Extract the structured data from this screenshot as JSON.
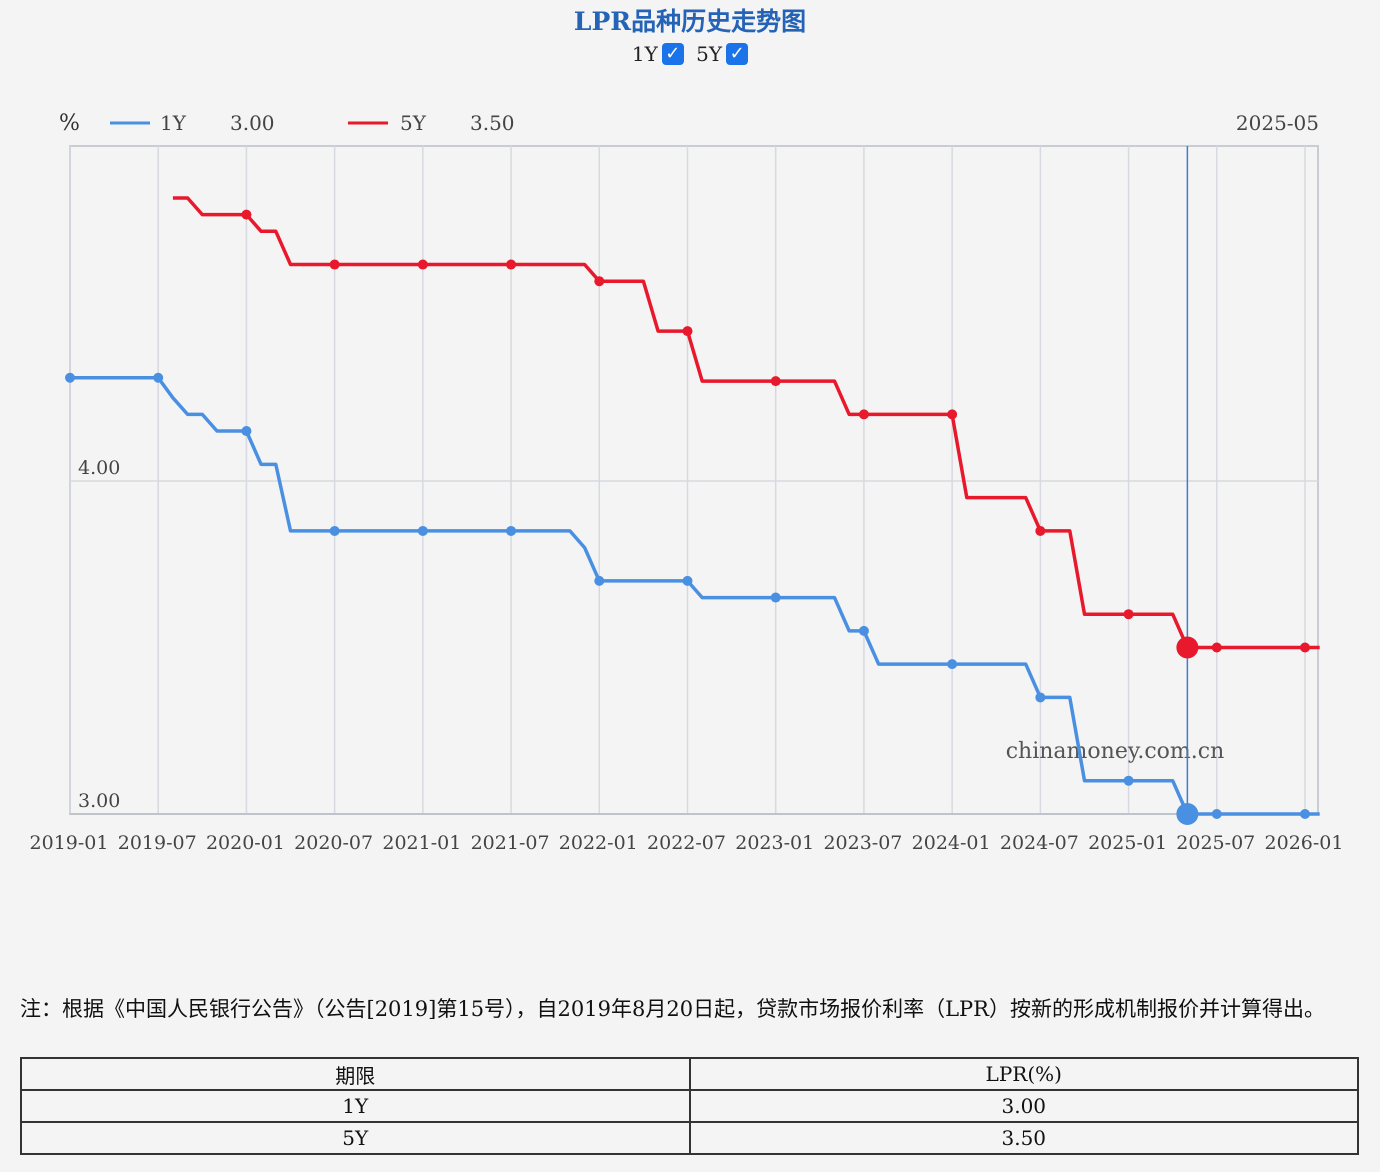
{
  "title": "LPR品种历史走势图",
  "toggles": [
    {
      "label": "1Y",
      "checked": true
    },
    {
      "label": "5Y",
      "checked": true
    }
  ],
  "legend": {
    "unit": "%",
    "items": [
      {
        "name": "1Y",
        "value": "3.00",
        "color": "#4a90e2"
      },
      {
        "name": "5Y",
        "value": "3.50",
        "color": "#e8192c"
      }
    ],
    "cursor_date": "2025-05"
  },
  "watermark": "chinamoney.com.cn",
  "chart_data": {
    "type": "line",
    "xlabel": "",
    "ylabel": "%",
    "x_ticks": [
      "2019-01",
      "2019-07",
      "2020-01",
      "2020-07",
      "2021-01",
      "2021-07",
      "2022-01",
      "2022-07",
      "2023-01",
      "2023-07",
      "2024-01",
      "2024-07",
      "2025-01",
      "2025-07",
      "2026-01"
    ],
    "y_ticks": [
      "4.00",
      "3.00"
    ],
    "ylim": [
      3.0,
      5.0
    ],
    "xlim": [
      "2019-01",
      "2026-01"
    ],
    "grid": true,
    "cursor_x": "2025-05",
    "series": [
      {
        "name": "1Y",
        "color": "#4a90e2",
        "points": [
          [
            "2019-01",
            4.31
          ],
          [
            "2019-07",
            4.31
          ],
          [
            "2019-08",
            4.25
          ],
          [
            "2019-09",
            4.2
          ],
          [
            "2019-10",
            4.2
          ],
          [
            "2019-11",
            4.15
          ],
          [
            "2019-12",
            4.15
          ],
          [
            "2020-01",
            4.15
          ],
          [
            "2020-02",
            4.05
          ],
          [
            "2020-03",
            4.05
          ],
          [
            "2020-04",
            3.85
          ],
          [
            "2020-07",
            3.85
          ],
          [
            "2021-01",
            3.85
          ],
          [
            "2021-07",
            3.85
          ],
          [
            "2021-11",
            3.85
          ],
          [
            "2021-12",
            3.8
          ],
          [
            "2022-01",
            3.7
          ],
          [
            "2022-07",
            3.7
          ],
          [
            "2022-08",
            3.65
          ],
          [
            "2023-01",
            3.65
          ],
          [
            "2023-05",
            3.65
          ],
          [
            "2023-06",
            3.55
          ],
          [
            "2023-07",
            3.55
          ],
          [
            "2023-08",
            3.45
          ],
          [
            "2024-01",
            3.45
          ],
          [
            "2024-06",
            3.45
          ],
          [
            "2024-07",
            3.35
          ],
          [
            "2024-09",
            3.35
          ],
          [
            "2024-10",
            3.1
          ],
          [
            "2025-01",
            3.1
          ],
          [
            "2025-04",
            3.1
          ],
          [
            "2025-05",
            3.0
          ],
          [
            "2025-07",
            3.0
          ],
          [
            "2026-01",
            3.0
          ],
          [
            "2026-02",
            3.0
          ]
        ],
        "markers": [
          "2019-01",
          "2019-07",
          "2020-01",
          "2020-07",
          "2021-01",
          "2021-07",
          "2022-01",
          "2022-07",
          "2023-01",
          "2023-07",
          "2024-01",
          "2024-07",
          "2025-01",
          "2025-07",
          "2026-01"
        ]
      },
      {
        "name": "5Y",
        "color": "#e8192c",
        "points": [
          [
            "2019-08",
            4.85
          ],
          [
            "2019-09",
            4.85
          ],
          [
            "2019-10",
            4.8
          ],
          [
            "2019-11",
            4.8
          ],
          [
            "2019-12",
            4.8
          ],
          [
            "2020-01",
            4.8
          ],
          [
            "2020-02",
            4.75
          ],
          [
            "2020-03",
            4.75
          ],
          [
            "2020-04",
            4.65
          ],
          [
            "2020-07",
            4.65
          ],
          [
            "2021-01",
            4.65
          ],
          [
            "2021-07",
            4.65
          ],
          [
            "2021-12",
            4.65
          ],
          [
            "2022-01",
            4.6
          ],
          [
            "2022-04",
            4.6
          ],
          [
            "2022-05",
            4.45
          ],
          [
            "2022-07",
            4.45
          ],
          [
            "2022-08",
            4.3
          ],
          [
            "2023-01",
            4.3
          ],
          [
            "2023-05",
            4.3
          ],
          [
            "2023-06",
            4.2
          ],
          [
            "2023-07",
            4.2
          ],
          [
            "2024-01",
            4.2
          ],
          [
            "2024-02",
            3.95
          ],
          [
            "2024-06",
            3.95
          ],
          [
            "2024-07",
            3.85
          ],
          [
            "2024-09",
            3.85
          ],
          [
            "2024-10",
            3.6
          ],
          [
            "2025-01",
            3.6
          ],
          [
            "2025-04",
            3.6
          ],
          [
            "2025-05",
            3.5
          ],
          [
            "2025-07",
            3.5
          ],
          [
            "2026-01",
            3.5
          ],
          [
            "2026-02",
            3.5
          ]
        ],
        "markers": [
          "2020-01",
          "2020-07",
          "2021-01",
          "2021-07",
          "2022-01",
          "2022-07",
          "2023-01",
          "2023-07",
          "2024-01",
          "2024-07",
          "2025-01",
          "2025-07",
          "2026-01"
        ]
      }
    ]
  },
  "note": "注：根据《中国人民银行公告》（公告[2019]第15号），自2019年8月20日起，贷款市场报价利率（LPR）按新的形成机制报价并计算得出。",
  "table": {
    "headers": [
      "期限",
      "LPR(%)"
    ],
    "rows": [
      [
        "1Y",
        "3.00"
      ],
      [
        "5Y",
        "3.50"
      ]
    ]
  }
}
